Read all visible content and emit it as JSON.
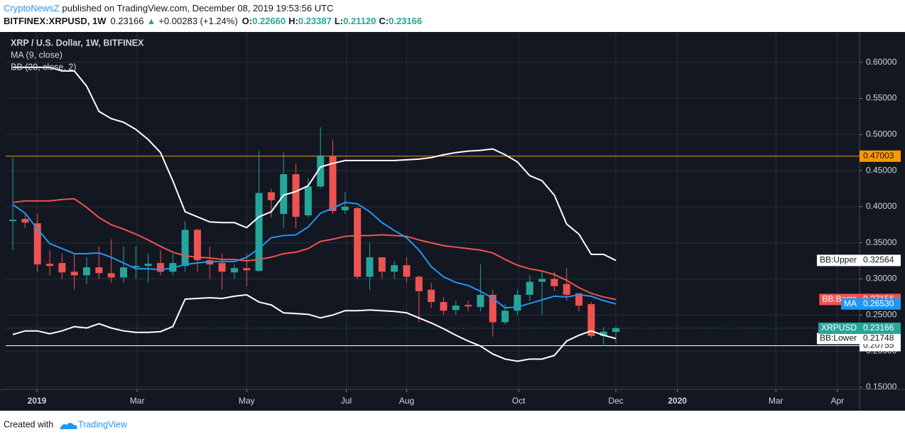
{
  "chart_data": {
    "type": "candlestick",
    "header": {
      "author": "CryptoNewsZ",
      "published": " published on TradingView.com, December 08, 2019 19:53:56 UTC",
      "symbol": "BITFINEX:XRPUSD, 1W",
      "last": "0.23166",
      "change": "+0.00283 (+1.24%)",
      "ohlc": [
        {
          "label": "O:",
          "value": "0.22660"
        },
        {
          "label": "H:",
          "value": "0.23387"
        },
        {
          "label": "L:",
          "value": "0.21120"
        },
        {
          "label": "C:",
          "value": "0.23166"
        }
      ]
    },
    "title": "XRP / U.S. Dollar, 1W, BITFINEX",
    "legend": [
      "MA (9, close)",
      "BB (20, close, 2)"
    ],
    "footer": {
      "created": "Created with",
      "brand": "TradingView"
    },
    "x": [
      0,
      1,
      2,
      3,
      4,
      5,
      6,
      7,
      8,
      9,
      10,
      11,
      12,
      13,
      14,
      15,
      16,
      17,
      18,
      19,
      20,
      21,
      22,
      23,
      24,
      25,
      26,
      27,
      28,
      29,
      30,
      31,
      32,
      33,
      34,
      35,
      36,
      37,
      38,
      39,
      40,
      41,
      42,
      43,
      44,
      45,
      46,
      47,
      48,
      49
    ],
    "candles": {
      "open": [
        0.38,
        0.383,
        0.377,
        0.321,
        0.322,
        0.31,
        0.305,
        0.316,
        0.308,
        0.302,
        0.316,
        0.318,
        0.322,
        0.31,
        0.318,
        0.368,
        0.326,
        0.322,
        0.309,
        0.315,
        0.311,
        0.42,
        0.39,
        0.445,
        0.388,
        0.428,
        0.47,
        0.395,
        0.398,
        0.303,
        0.33,
        0.31,
        0.319,
        0.303,
        0.285,
        0.268,
        0.257,
        0.264,
        0.261,
        0.278,
        0.24,
        0.256,
        0.278,
        0.296,
        0.3,
        0.293,
        0.28,
        0.265,
        0.221,
        0.2266
      ],
      "high": [
        0.468,
        0.39,
        0.39,
        0.34,
        0.335,
        0.335,
        0.33,
        0.345,
        0.355,
        0.345,
        0.345,
        0.335,
        0.34,
        0.335,
        0.38,
        0.37,
        0.345,
        0.335,
        0.32,
        0.335,
        0.477,
        0.425,
        0.475,
        0.46,
        0.44,
        0.51,
        0.493,
        0.42,
        0.4,
        0.35,
        0.33,
        0.325,
        0.33,
        0.305,
        0.295,
        0.275,
        0.27,
        0.27,
        0.32,
        0.285,
        0.265,
        0.285,
        0.305,
        0.31,
        0.31,
        0.315,
        0.28,
        0.268,
        0.233,
        0.23387
      ],
      "low": [
        0.34,
        0.37,
        0.31,
        0.305,
        0.3,
        0.285,
        0.293,
        0.3,
        0.295,
        0.295,
        0.3,
        0.295,
        0.305,
        0.305,
        0.31,
        0.31,
        0.3,
        0.285,
        0.3,
        0.29,
        0.31,
        0.385,
        0.37,
        0.37,
        0.385,
        0.425,
        0.39,
        0.39,
        0.3,
        0.285,
        0.3,
        0.3,
        0.295,
        0.24,
        0.26,
        0.25,
        0.25,
        0.255,
        0.255,
        0.22,
        0.237,
        0.25,
        0.27,
        0.25,
        0.283,
        0.27,
        0.255,
        0.218,
        0.207,
        0.2112
      ],
      "close": [
        0.382,
        0.378,
        0.32,
        0.318,
        0.309,
        0.305,
        0.316,
        0.308,
        0.302,
        0.316,
        0.318,
        0.321,
        0.31,
        0.322,
        0.368,
        0.326,
        0.32,
        0.31,
        0.315,
        0.312,
        0.419,
        0.409,
        0.445,
        0.386,
        0.428,
        0.471,
        0.394,
        0.4,
        0.303,
        0.33,
        0.31,
        0.319,
        0.303,
        0.283,
        0.268,
        0.256,
        0.263,
        0.262,
        0.278,
        0.24,
        0.256,
        0.278,
        0.296,
        0.3,
        0.29,
        0.278,
        0.263,
        0.221,
        0.227,
        0.23166
      ]
    },
    "up_color": "#26a69a",
    "down_color": "#ef5350",
    "lines": [
      {
        "name": "BB:Upper",
        "color": "#ffffff",
        "label_bg": "#ffffff",
        "label_fg": "#131722",
        "values": [
          0.593,
          0.593,
          0.593,
          0.593,
          0.588,
          0.588,
          0.567,
          0.532,
          0.522,
          0.517,
          0.507,
          0.493,
          0.475,
          0.436,
          0.393,
          0.386,
          0.379,
          0.378,
          0.378,
          0.371,
          0.386,
          0.393,
          0.416,
          0.421,
          0.429,
          0.455,
          0.46,
          0.464,
          0.464,
          0.464,
          0.464,
          0.464,
          0.465,
          0.466,
          0.468,
          0.472,
          0.475,
          0.477,
          0.478,
          0.48,
          0.472,
          0.462,
          0.443,
          0.436,
          0.416,
          0.376,
          0.362,
          0.334,
          0.334,
          0.32564
        ]
      },
      {
        "name": "BB:Basis",
        "color": "#ef5350",
        "label_bg": "#ef5350",
        "label_fg": "#ffffff",
        "values": [
          0.406,
          0.408,
          0.408,
          0.408,
          0.41,
          0.411,
          0.399,
          0.385,
          0.375,
          0.369,
          0.362,
          0.354,
          0.345,
          0.337,
          0.332,
          0.33,
          0.329,
          0.327,
          0.327,
          0.325,
          0.327,
          0.33,
          0.335,
          0.337,
          0.342,
          0.352,
          0.355,
          0.359,
          0.36,
          0.36,
          0.361,
          0.36,
          0.359,
          0.354,
          0.35,
          0.346,
          0.344,
          0.342,
          0.34,
          0.336,
          0.327,
          0.319,
          0.314,
          0.311,
          0.306,
          0.298,
          0.288,
          0.28,
          0.275,
          0.27156
        ]
      },
      {
        "name": "MA",
        "color": "#2196f3",
        "label_bg": "#2196f3",
        "label_fg": "#ffffff",
        "last_label": "0.26530",
        "values": [
          0.403,
          0.391,
          0.369,
          0.349,
          0.342,
          0.335,
          0.335,
          0.336,
          0.33,
          0.322,
          0.314,
          0.314,
          0.313,
          0.315,
          0.32,
          0.322,
          0.324,
          0.324,
          0.324,
          0.33,
          0.342,
          0.357,
          0.36,
          0.361,
          0.372,
          0.391,
          0.398,
          0.406,
          0.404,
          0.393,
          0.378,
          0.367,
          0.357,
          0.34,
          0.317,
          0.303,
          0.295,
          0.291,
          0.283,
          0.273,
          0.26,
          0.261,
          0.266,
          0.271,
          0.276,
          0.275,
          0.278,
          0.276,
          0.27,
          0.2653
        ]
      },
      {
        "name": "BB:Lower",
        "color": "#ffffff",
        "label_bg": "#ffffff",
        "label_fg": "#131722",
        "values": [
          0.223,
          0.228,
          0.228,
          0.224,
          0.228,
          0.234,
          0.232,
          0.238,
          0.232,
          0.228,
          0.226,
          0.226,
          0.227,
          0.234,
          0.272,
          0.273,
          0.274,
          0.273,
          0.276,
          0.278,
          0.268,
          0.264,
          0.253,
          0.252,
          0.251,
          0.246,
          0.25,
          0.256,
          0.256,
          0.257,
          0.256,
          0.255,
          0.253,
          0.246,
          0.239,
          0.231,
          0.222,
          0.214,
          0.207,
          0.196,
          0.189,
          0.186,
          0.189,
          0.189,
          0.194,
          0.214,
          0.222,
          0.228,
          0.222,
          0.21748
        ]
      }
    ],
    "price_line": {
      "name": "XRPUSD",
      "value": 0.23166,
      "color": "#26a69a"
    },
    "hlines": [
      {
        "value": 0.47003,
        "color": "#ff9800",
        "label_fg": "#131722"
      },
      {
        "value": 0.20755,
        "color": "#ffffff",
        "label_fg": "#131722"
      }
    ],
    "xlim": [
      -0.58,
      68.8
    ],
    "ylim": [
      0.147,
      0.642
    ],
    "xticks": [
      {
        "value": 1.96,
        "label": "2019"
      },
      {
        "value": 10.1,
        "label": "Mar"
      },
      {
        "value": 19.0,
        "label": "May"
      },
      {
        "value": 27.1,
        "label": "Jul"
      },
      {
        "value": 32.0,
        "label": "Aug"
      },
      {
        "value": 41.1,
        "label": "Oct"
      },
      {
        "value": 49.0,
        "label": "Dec"
      },
      {
        "value": 54.0,
        "label": "2020"
      },
      {
        "value": 62.0,
        "label": "Mar"
      },
      {
        "value": 67.0,
        "label": "Apr"
      }
    ],
    "yticks": [
      {
        "value": 0.15,
        "label": "0.15000"
      },
      {
        "value": 0.2,
        "label": "0.20000"
      },
      {
        "value": 0.25,
        "label": "0.25000"
      },
      {
        "value": 0.3,
        "label": "0.30000"
      },
      {
        "value": 0.35,
        "label": "0.35000"
      },
      {
        "value": 0.4,
        "label": "0.40000"
      },
      {
        "value": 0.45,
        "label": "0.45000"
      },
      {
        "value": 0.5,
        "label": "0.50000"
      },
      {
        "value": 0.55,
        "label": "0.55000"
      },
      {
        "value": 0.6,
        "label": "0.60000"
      }
    ],
    "grid": true
  }
}
